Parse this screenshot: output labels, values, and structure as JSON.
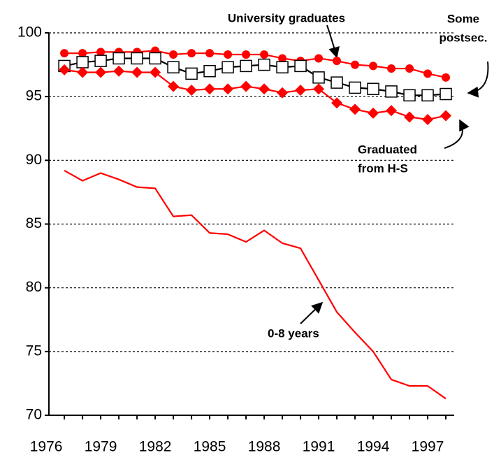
{
  "chart_data": {
    "type": "line",
    "x": [
      1977,
      1978,
      1979,
      1980,
      1981,
      1982,
      1983,
      1984,
      1985,
      1986,
      1987,
      1988,
      1989,
      1990,
      1991,
      1992,
      1993,
      1994,
      1995,
      1996,
      1997,
      1998
    ],
    "series": [
      {
        "color": "#ff0000",
        "marker": "circle",
        "values": [
          98.4,
          98.4,
          98.5,
          98.5,
          98.5,
          98.6,
          98.3,
          98.4,
          98.4,
          98.3,
          98.3,
          98.3,
          98.0,
          97.8,
          98.0,
          97.8,
          97.5,
          97.4,
          97.2,
          97.2,
          96.8,
          96.5
        ]
      },
      {
        "color": "#000000",
        "marker": "square",
        "values": [
          97.4,
          97.7,
          97.8,
          98.0,
          98.0,
          98.0,
          97.3,
          96.8,
          97.0,
          97.3,
          97.4,
          97.5,
          97.3,
          97.4,
          96.5,
          96.1,
          95.7,
          95.6,
          95.4,
          95.1,
          95.1,
          95.2
        ]
      },
      {
        "color": "#ff0000",
        "marker": "diamond",
        "values": [
          97.1,
          96.9,
          96.9,
          97.0,
          96.9,
          96.9,
          95.8,
          95.5,
          95.6,
          95.6,
          95.8,
          95.6,
          95.3,
          95.5,
          95.6,
          94.5,
          94.0,
          93.7,
          93.9,
          93.4,
          93.2,
          93.5
        ]
      },
      {
        "color": "#ff0000",
        "marker": "none",
        "values": [
          89.2,
          88.4,
          89.0,
          88.5,
          87.9,
          87.8,
          85.6,
          85.7,
          84.3,
          84.2,
          83.6,
          84.5,
          83.5,
          83.1,
          80.6,
          78.1,
          76.5,
          75.0,
          72.8,
          72.3,
          72.3,
          71.3
        ]
      }
    ],
    "annotations": [
      [
        "University graduates"
      ],
      [
        "Some",
        "postsec."
      ],
      [
        "Graduated",
        "from H-S"
      ],
      [
        "0-8 years"
      ]
    ],
    "xlim": [
      1976.15,
      1998.46
    ],
    "xticks": [
      1976,
      1979,
      1982,
      1985,
      1988,
      1991,
      1994,
      1997
    ],
    "ylim": [
      70,
      100
    ],
    "yticks": [
      70,
      75,
      80,
      85,
      90,
      95,
      100
    ],
    "grid": true
  }
}
